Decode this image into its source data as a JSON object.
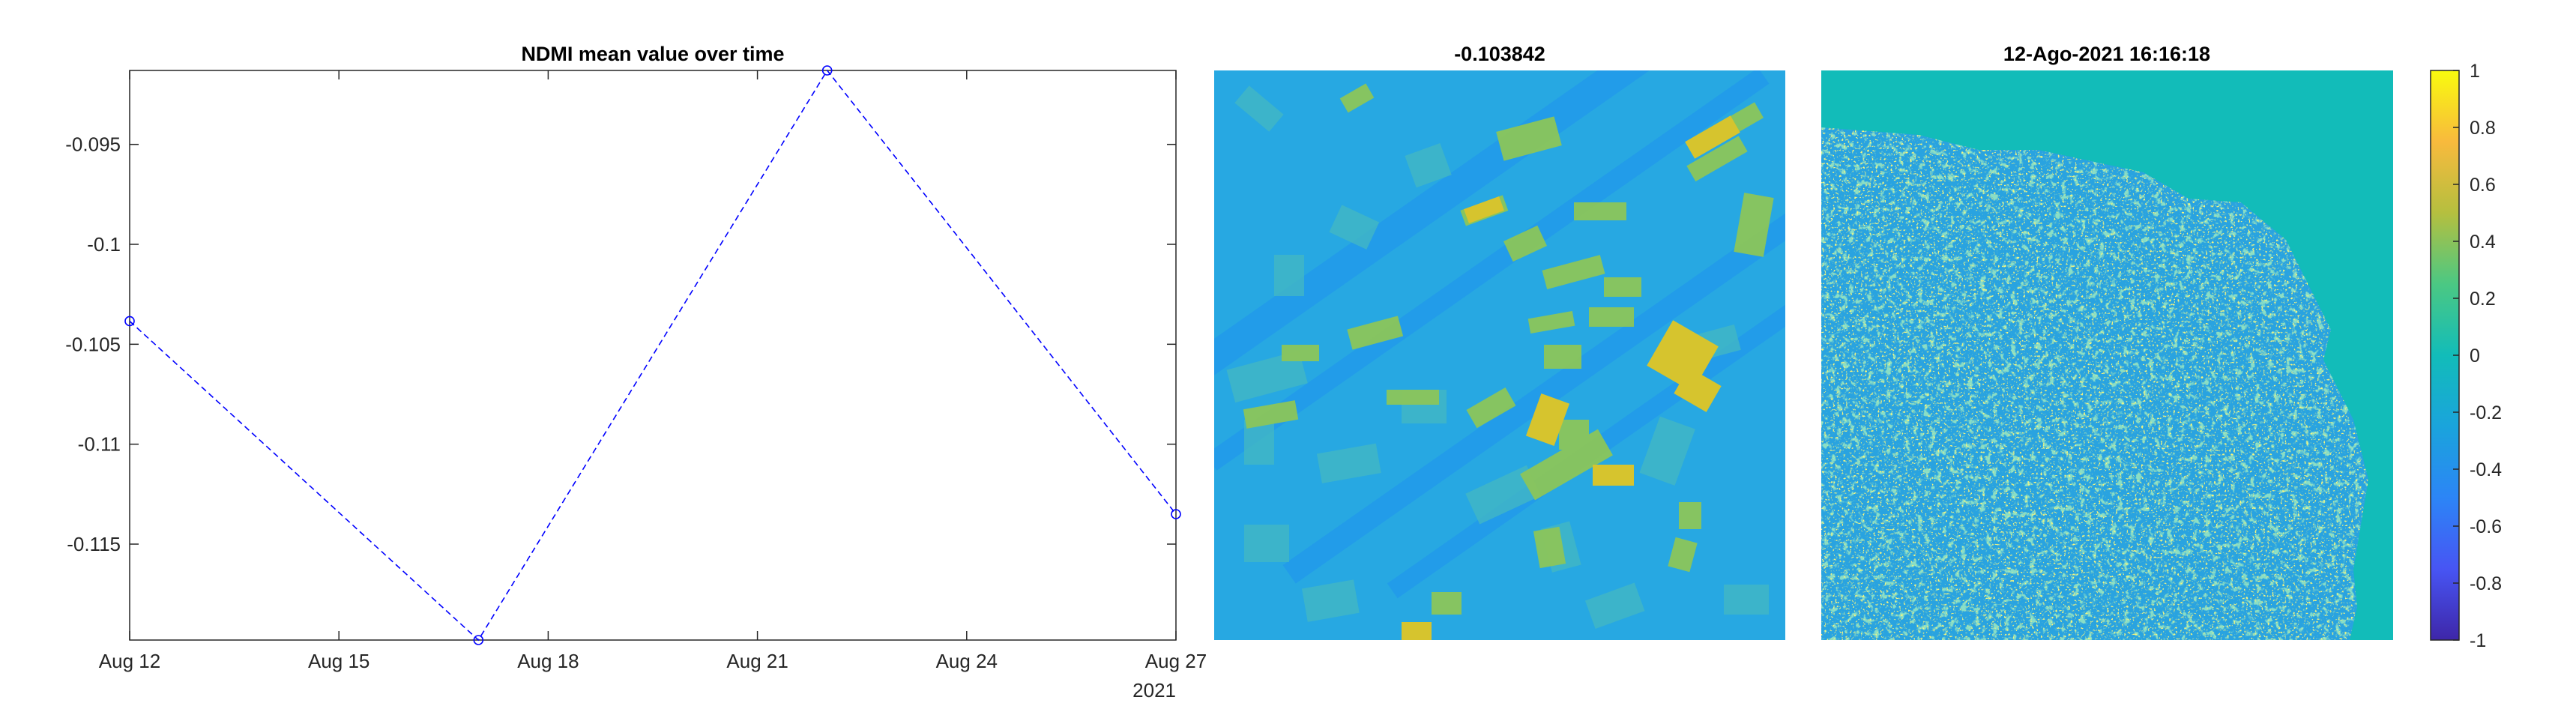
{
  "chart_data": [
    {
      "type": "line",
      "title": "NDMI mean value over time",
      "xlabel": "",
      "ylabel": "",
      "x_tick_labels": [
        "Aug 12",
        "Aug 15",
        "Aug 18",
        "Aug 21",
        "Aug 24",
        "Aug 27"
      ],
      "x_ticks": [
        "2021-08-12",
        "2021-08-15",
        "2021-08-18",
        "2021-08-21",
        "2021-08-24",
        "2021-08-27"
      ],
      "x_secondary_label": "2021",
      "xlim": [
        "2021-08-12",
        "2021-08-27"
      ],
      "ylim": [
        -0.1198,
        -0.0913
      ],
      "y_ticks": [
        -0.115,
        -0.11,
        -0.105,
        -0.1,
        -0.095
      ],
      "y_tick_labels": [
        "-0.115",
        "-0.11",
        "-0.105",
        "-0.1",
        "-0.095"
      ],
      "grid": false,
      "series": [
        {
          "color": "#0000ff",
          "line_style": "dashed",
          "marker": "circle",
          "points": [
            {
              "x": "2021-08-12",
              "y": -0.103842
            },
            {
              "x": "2021-08-17",
              "y": -0.1198
            },
            {
              "x": "2021-08-22",
              "y": -0.0913
            },
            {
              "x": "2021-08-27",
              "y": -0.1135
            }
          ]
        }
      ]
    },
    {
      "type": "heatmap",
      "title": "-0.103842",
      "colormap": "parula",
      "clim": [
        -1,
        1
      ]
    },
    {
      "type": "heatmap",
      "title": "12-Ago-2021 16:16:18",
      "colormap": "parula",
      "clim": [
        -1,
        1
      ],
      "colorbar": {
        "ticks": [
          1,
          0.8,
          0.6,
          0.4,
          0.2,
          0,
          -0.2,
          -0.4,
          -0.6,
          -0.8,
          -1
        ],
        "tick_labels": [
          "1",
          "0.8",
          "0.6",
          "0.4",
          "0.2",
          "0",
          "-0.2",
          "-0.4",
          "-0.6",
          "-0.8",
          "-1"
        ]
      }
    }
  ]
}
